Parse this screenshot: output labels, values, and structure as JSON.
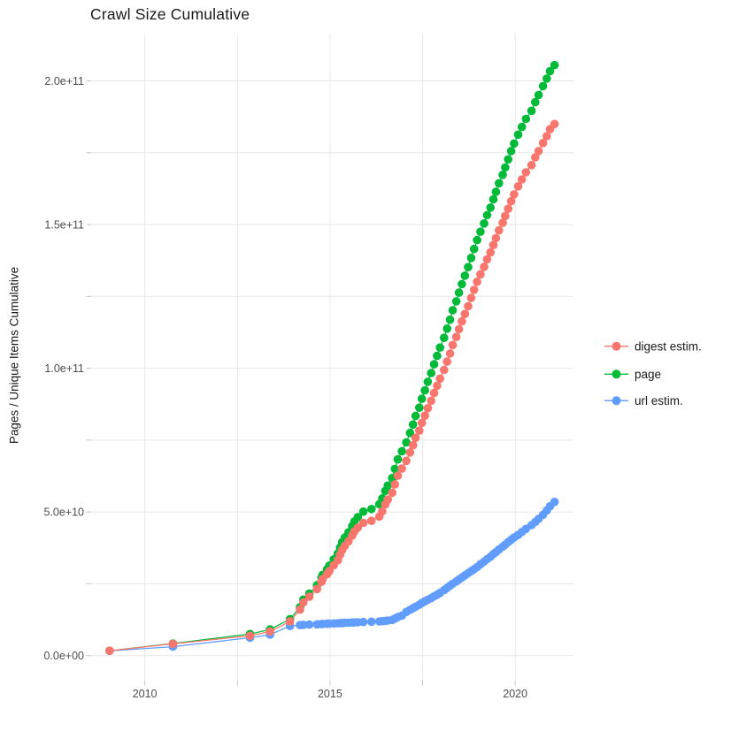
{
  "chart_data": {
    "type": "scatter",
    "title": "Crawl Size Cumulative",
    "xlabel": "",
    "ylabel": "Pages / Unique Items Cumulative",
    "value_unit": "items, cumulative count (values stored in billions, 1 = 1e9)",
    "x_axis": {
      "range": [
        2008.55,
        2021.57
      ],
      "ticks": [
        {
          "year": 2010,
          "label": "2010"
        },
        {
          "year": 2012.5,
          "label": ""
        },
        {
          "year": 2015,
          "label": "2015"
        },
        {
          "year": 2017.5,
          "label": ""
        },
        {
          "year": 2020,
          "label": "2020"
        }
      ]
    },
    "y_axis": {
      "range_e9": [
        -10,
        215.7
      ],
      "ticks": [
        {
          "value_e9": 0,
          "label": "0.0e+00"
        },
        {
          "value_e9": 25,
          "label": ""
        },
        {
          "value_e9": 50,
          "label": "5.0e+10"
        },
        {
          "value_e9": 75,
          "label": ""
        },
        {
          "value_e9": 100,
          "label": "1.0e+11"
        },
        {
          "value_e9": 125,
          "label": ""
        },
        {
          "value_e9": 150,
          "label": "1.5e+11"
        },
        {
          "value_e9": 175,
          "label": ""
        },
        {
          "value_e9": 200,
          "label": "2.0e+11"
        }
      ],
      "grid": true,
      "legend_position": "right-center"
    },
    "series": [
      {
        "name": "digest estim.",
        "color": "#F8766D",
        "points": [
          [
            2009.05,
            1.7
          ],
          [
            2010.76,
            4.1
          ],
          [
            2012.84,
            6.9
          ],
          [
            2013.38,
            8.4
          ],
          [
            2013.92,
            11.9
          ],
          [
            2014.19,
            16.0
          ],
          [
            2014.28,
            18.5
          ],
          [
            2014.44,
            20.5
          ],
          [
            2014.65,
            23.2
          ],
          [
            2014.77,
            25.7
          ],
          [
            2014.8,
            26.6
          ],
          [
            2014.92,
            28.3
          ],
          [
            2014.98,
            29.4
          ],
          [
            2015.1,
            31.4
          ],
          [
            2015.21,
            33.2
          ],
          [
            2015.27,
            35.1
          ],
          [
            2015.33,
            36.8
          ],
          [
            2015.4,
            38.2
          ],
          [
            2015.5,
            39.8
          ],
          [
            2015.6,
            41.8
          ],
          [
            2015.66,
            43.2
          ],
          [
            2015.75,
            44.5
          ],
          [
            2015.9,
            46.2
          ],
          [
            2016.12,
            46.9
          ],
          [
            2016.33,
            48.4
          ],
          [
            2016.41,
            50.2
          ],
          [
            2016.49,
            52.6
          ],
          [
            2016.56,
            54.3
          ],
          [
            2016.68,
            56.7
          ],
          [
            2016.75,
            59.6
          ],
          [
            2016.83,
            62.6
          ],
          [
            2016.94,
            65.1
          ],
          [
            2017.06,
            67.8
          ],
          [
            2017.16,
            70.7
          ],
          [
            2017.24,
            73.2
          ],
          [
            2017.31,
            75.8
          ],
          [
            2017.41,
            78.3
          ],
          [
            2017.48,
            81.0
          ],
          [
            2017.56,
            83.5
          ],
          [
            2017.64,
            86.1
          ],
          [
            2017.73,
            88.7
          ],
          [
            2017.81,
            91.4
          ],
          [
            2017.89,
            93.9
          ],
          [
            2017.97,
            96.4
          ],
          [
            2018.08,
            99.4
          ],
          [
            2018.16,
            102.3
          ],
          [
            2018.24,
            105.1
          ],
          [
            2018.31,
            108.1
          ],
          [
            2018.41,
            110.9
          ],
          [
            2018.48,
            113.6
          ],
          [
            2018.56,
            116.3
          ],
          [
            2018.64,
            118.9
          ],
          [
            2018.73,
            121.6
          ],
          [
            2018.81,
            124.5
          ],
          [
            2018.89,
            127.3
          ],
          [
            2018.97,
            130.1
          ],
          [
            2019.06,
            132.7
          ],
          [
            2019.16,
            135.3
          ],
          [
            2019.24,
            137.9
          ],
          [
            2019.33,
            140.3
          ],
          [
            2019.41,
            142.9
          ],
          [
            2019.48,
            145.3
          ],
          [
            2019.56,
            148.0
          ],
          [
            2019.66,
            150.6
          ],
          [
            2019.73,
            153.0
          ],
          [
            2019.81,
            155.5
          ],
          [
            2019.89,
            158.1
          ],
          [
            2019.97,
            160.5
          ],
          [
            2020.08,
            163.3
          ],
          [
            2020.18,
            165.7
          ],
          [
            2020.29,
            168.2
          ],
          [
            2020.44,
            170.7
          ],
          [
            2020.54,
            173.4
          ],
          [
            2020.63,
            175.6
          ],
          [
            2020.75,
            178.4
          ],
          [
            2020.85,
            180.8
          ],
          [
            2020.94,
            183.2
          ],
          [
            2021.06,
            185.0
          ]
        ]
      },
      {
        "name": "page",
        "color": "#00BA38",
        "points": [
          [
            2009.05,
            1.7
          ],
          [
            2010.76,
            4.2
          ],
          [
            2012.84,
            7.5
          ],
          [
            2013.38,
            9.1
          ],
          [
            2013.92,
            12.7
          ],
          [
            2014.19,
            16.9
          ],
          [
            2014.28,
            19.5
          ],
          [
            2014.44,
            21.6
          ],
          [
            2014.65,
            24.5
          ],
          [
            2014.77,
            27.1
          ],
          [
            2014.8,
            28.1
          ],
          [
            2014.92,
            30.0
          ],
          [
            2014.98,
            31.3
          ],
          [
            2015.1,
            33.5
          ],
          [
            2015.21,
            35.5
          ],
          [
            2015.27,
            37.6
          ],
          [
            2015.33,
            39.5
          ],
          [
            2015.4,
            41.1
          ],
          [
            2015.5,
            42.9
          ],
          [
            2015.6,
            45.1
          ],
          [
            2015.66,
            46.7
          ],
          [
            2015.75,
            48.2
          ],
          [
            2015.9,
            50.1
          ],
          [
            2016.12,
            51.0
          ],
          [
            2016.33,
            52.7
          ],
          [
            2016.41,
            54.7
          ],
          [
            2016.49,
            57.3
          ],
          [
            2016.56,
            59.2
          ],
          [
            2016.68,
            61.8
          ],
          [
            2016.75,
            65.0
          ],
          [
            2016.83,
            68.3
          ],
          [
            2016.94,
            71.1
          ],
          [
            2017.06,
            74.2
          ],
          [
            2017.16,
            77.5
          ],
          [
            2017.24,
            80.4
          ],
          [
            2017.31,
            83.4
          ],
          [
            2017.41,
            86.3
          ],
          [
            2017.48,
            89.4
          ],
          [
            2017.56,
            92.3
          ],
          [
            2017.64,
            95.3
          ],
          [
            2017.73,
            98.3
          ],
          [
            2017.81,
            101.4
          ],
          [
            2017.89,
            104.3
          ],
          [
            2017.97,
            107.2
          ],
          [
            2018.08,
            110.6
          ],
          [
            2018.16,
            113.8
          ],
          [
            2018.24,
            116.9
          ],
          [
            2018.31,
            120.2
          ],
          [
            2018.41,
            123.3
          ],
          [
            2018.48,
            126.3
          ],
          [
            2018.56,
            129.3
          ],
          [
            2018.64,
            132.2
          ],
          [
            2018.73,
            135.2
          ],
          [
            2018.81,
            138.4
          ],
          [
            2018.89,
            141.5
          ],
          [
            2018.97,
            144.6
          ],
          [
            2019.06,
            147.5
          ],
          [
            2019.16,
            150.4
          ],
          [
            2019.24,
            153.3
          ],
          [
            2019.33,
            155.9
          ],
          [
            2019.41,
            158.8
          ],
          [
            2019.48,
            161.4
          ],
          [
            2019.56,
            164.4
          ],
          [
            2019.66,
            167.3
          ],
          [
            2019.73,
            169.9
          ],
          [
            2019.81,
            172.7
          ],
          [
            2019.89,
            175.6
          ],
          [
            2019.97,
            178.2
          ],
          [
            2020.08,
            181.3
          ],
          [
            2020.18,
            184.0
          ],
          [
            2020.29,
            186.8
          ],
          [
            2020.44,
            189.6
          ],
          [
            2020.54,
            192.6
          ],
          [
            2020.63,
            195.1
          ],
          [
            2020.75,
            198.2
          ],
          [
            2020.85,
            200.8
          ],
          [
            2020.94,
            203.4
          ],
          [
            2021.06,
            205.5
          ]
        ]
      },
      {
        "name": "url estim.",
        "color": "#619CFF",
        "points": [
          [
            2009.05,
            1.65
          ],
          [
            2010.76,
            3.1
          ],
          [
            2012.84,
            6.2
          ],
          [
            2013.38,
            7.3
          ],
          [
            2013.92,
            10.3
          ],
          [
            2014.19,
            10.6
          ],
          [
            2014.28,
            10.7
          ],
          [
            2014.44,
            10.8
          ],
          [
            2014.65,
            10.9
          ],
          [
            2014.77,
            11.0
          ],
          [
            2014.8,
            11.0
          ],
          [
            2014.92,
            11.1
          ],
          [
            2014.98,
            11.1
          ],
          [
            2015.1,
            11.2
          ],
          [
            2015.21,
            11.25
          ],
          [
            2015.27,
            11.3
          ],
          [
            2015.33,
            11.35
          ],
          [
            2015.4,
            11.4
          ],
          [
            2015.5,
            11.45
          ],
          [
            2015.6,
            11.5
          ],
          [
            2015.66,
            11.55
          ],
          [
            2015.75,
            11.6
          ],
          [
            2015.9,
            11.7
          ],
          [
            2016.12,
            11.8
          ],
          [
            2016.33,
            11.9
          ],
          [
            2016.41,
            12.0
          ],
          [
            2016.49,
            12.1
          ],
          [
            2016.56,
            12.2
          ],
          [
            2016.68,
            12.4
          ],
          [
            2016.75,
            12.9
          ],
          [
            2016.83,
            13.4
          ],
          [
            2016.94,
            13.9
          ],
          [
            2017.06,
            15.2
          ],
          [
            2017.16,
            15.9
          ],
          [
            2017.24,
            16.5
          ],
          [
            2017.31,
            17.0
          ],
          [
            2017.41,
            17.7
          ],
          [
            2017.48,
            18.3
          ],
          [
            2017.56,
            18.9
          ],
          [
            2017.64,
            19.4
          ],
          [
            2017.73,
            20.0
          ],
          [
            2017.81,
            20.6
          ],
          [
            2017.89,
            21.2
          ],
          [
            2017.97,
            21.8
          ],
          [
            2018.08,
            22.8
          ],
          [
            2018.16,
            23.55
          ],
          [
            2018.24,
            24.3
          ],
          [
            2018.31,
            25.0
          ],
          [
            2018.41,
            25.8
          ],
          [
            2018.48,
            26.5
          ],
          [
            2018.56,
            27.2
          ],
          [
            2018.64,
            27.9
          ],
          [
            2018.73,
            28.7
          ],
          [
            2018.81,
            29.4
          ],
          [
            2018.89,
            30.1
          ],
          [
            2018.97,
            30.8
          ],
          [
            2019.06,
            31.8
          ],
          [
            2019.16,
            32.7
          ],
          [
            2019.24,
            33.6
          ],
          [
            2019.33,
            34.4
          ],
          [
            2019.41,
            35.3
          ],
          [
            2019.48,
            36.0
          ],
          [
            2019.56,
            36.9
          ],
          [
            2019.66,
            37.9
          ],
          [
            2019.73,
            38.6
          ],
          [
            2019.81,
            39.5
          ],
          [
            2019.89,
            40.3
          ],
          [
            2019.97,
            41.1
          ],
          [
            2020.08,
            42.0
          ],
          [
            2020.18,
            43.0
          ],
          [
            2020.29,
            44.1
          ],
          [
            2020.44,
            45.4
          ],
          [
            2020.54,
            46.5
          ],
          [
            2020.63,
            47.6
          ],
          [
            2020.75,
            49.0
          ],
          [
            2020.85,
            50.5
          ],
          [
            2020.94,
            52.0
          ],
          [
            2021.06,
            53.5
          ]
        ]
      }
    ]
  }
}
